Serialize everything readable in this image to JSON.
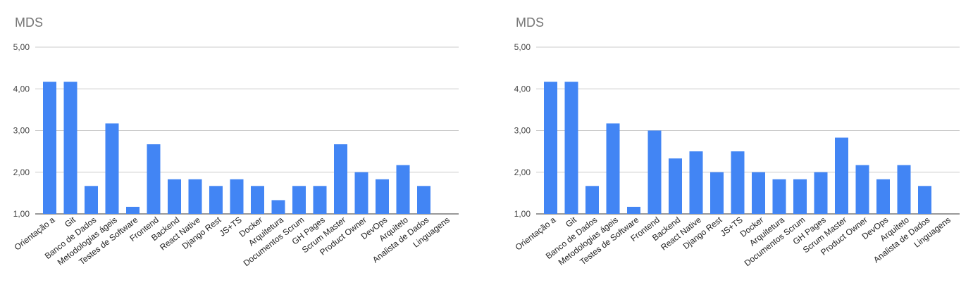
{
  "colors": {
    "bar": "#4285f4",
    "grid": "#cccccc",
    "axis": "#333333"
  },
  "chart_data": [
    {
      "type": "bar",
      "title": "MDS",
      "xlabel": "",
      "ylabel": "",
      "ylim": [
        1,
        5
      ],
      "yticks": [
        "1,00",
        "2,00",
        "3,00",
        "4,00",
        "5,00"
      ],
      "grid": true,
      "categories": [
        "Orientação a",
        "Git",
        "Banco de Dados",
        "Metodologias ágeis",
        "Testes de Software",
        "Frontend",
        "Backend",
        "React Native",
        "Django Rest",
        "JS+TS",
        "Docker",
        "Arquitetura",
        "Documentos Scrum",
        "GH Pages",
        "Scrum Master",
        "Product Owner",
        "DevOps",
        "Arquiteto",
        "Analista de Dados",
        "Linguagens"
      ],
      "values": [
        4.17,
        4.17,
        1.67,
        3.17,
        1.17,
        2.67,
        1.83,
        1.83,
        1.67,
        1.83,
        1.67,
        1.33,
        1.67,
        1.67,
        2.67,
        2.0,
        1.83,
        2.17,
        1.67,
        null
      ]
    },
    {
      "type": "bar",
      "title": "MDS",
      "xlabel": "",
      "ylabel": "",
      "ylim": [
        1,
        5
      ],
      "yticks": [
        "1,00",
        "2,00",
        "3,00",
        "4,00",
        "5,00"
      ],
      "grid": true,
      "categories": [
        "Orientação a",
        "Git",
        "Banco de Dados",
        "Metodologias ágeis",
        "Testes de Software",
        "Frontend",
        "Backend",
        "React Native",
        "Django Rest",
        "JS+TS",
        "Docker",
        "Arquitetura",
        "Documentos Scrum",
        "GH Pages",
        "Scrum Master",
        "Product Owner",
        "DevOps",
        "Arquiteto",
        "Analista de Dados",
        "Linguagens"
      ],
      "values": [
        4.17,
        4.17,
        1.67,
        3.17,
        1.17,
        3.0,
        2.33,
        2.5,
        2.0,
        2.5,
        2.0,
        1.83,
        1.83,
        2.0,
        2.83,
        2.17,
        1.83,
        2.17,
        1.67,
        null
      ]
    }
  ]
}
